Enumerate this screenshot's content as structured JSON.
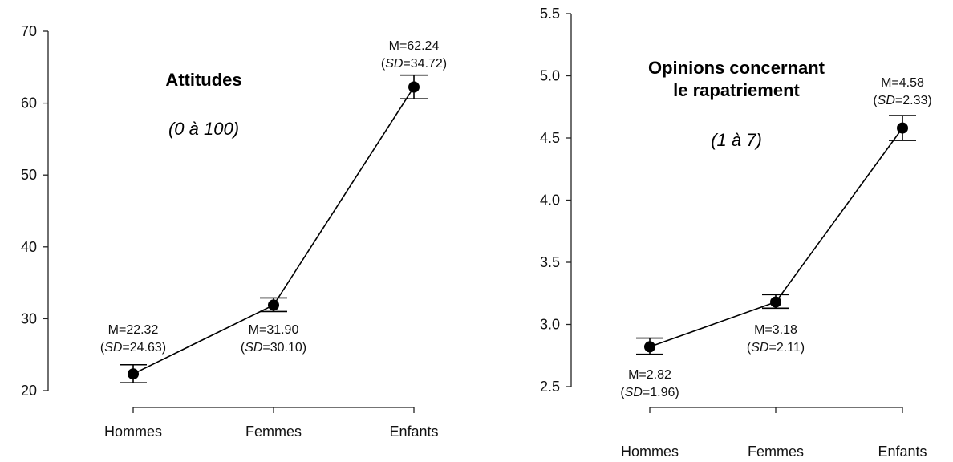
{
  "chart_data": [
    {
      "type": "line",
      "title": "Attitudes",
      "subtitle": "(0 à 100)",
      "categories": [
        "Hommes",
        "Femmes",
        "Enfants"
      ],
      "series": [
        {
          "values": [
            22.32,
            31.9,
            62.24
          ],
          "error_low": [
            21.1,
            31.0,
            60.6
          ],
          "error_high": [
            23.6,
            32.9,
            63.9
          ],
          "labels": [
            {
              "mean": "M=22.32",
              "sd": "24.63"
            },
            {
              "mean": "M=31.90",
              "sd": "30.10"
            },
            {
              "mean": "M=62.24",
              "sd": "34.72"
            }
          ]
        }
      ],
      "yticks": [
        "20",
        "30",
        "40",
        "50",
        "60",
        "70"
      ],
      "ylim": [
        20,
        70
      ],
      "sd_prefix": "SD",
      "xlabel": "",
      "ylabel": ""
    },
    {
      "type": "line",
      "title": "Opinions concernant le rapatriement",
      "title_lines": [
        "Opinions concernant",
        "le rapatriement"
      ],
      "subtitle": "(1 à 7)",
      "categories": [
        "Hommes",
        "Femmes",
        "Enfants"
      ],
      "series": [
        {
          "values": [
            2.82,
            3.18,
            4.58
          ],
          "error_low": [
            2.76,
            3.13,
            4.48
          ],
          "error_high": [
            2.89,
            3.24,
            4.68
          ],
          "labels": [
            {
              "mean": "M=2.82",
              "sd": "1.96"
            },
            {
              "mean": "M=3.18",
              "sd": "2.11"
            },
            {
              "mean": "M=4.58",
              "sd": "2.33"
            }
          ]
        }
      ],
      "yticks": [
        "2.5",
        "3.0",
        "3.5",
        "4.0",
        "4.5",
        "5.0",
        "5.5"
      ],
      "ylim": [
        2.5,
        5.5
      ],
      "sd_prefix": "SD",
      "xlabel": "",
      "ylabel": ""
    }
  ]
}
